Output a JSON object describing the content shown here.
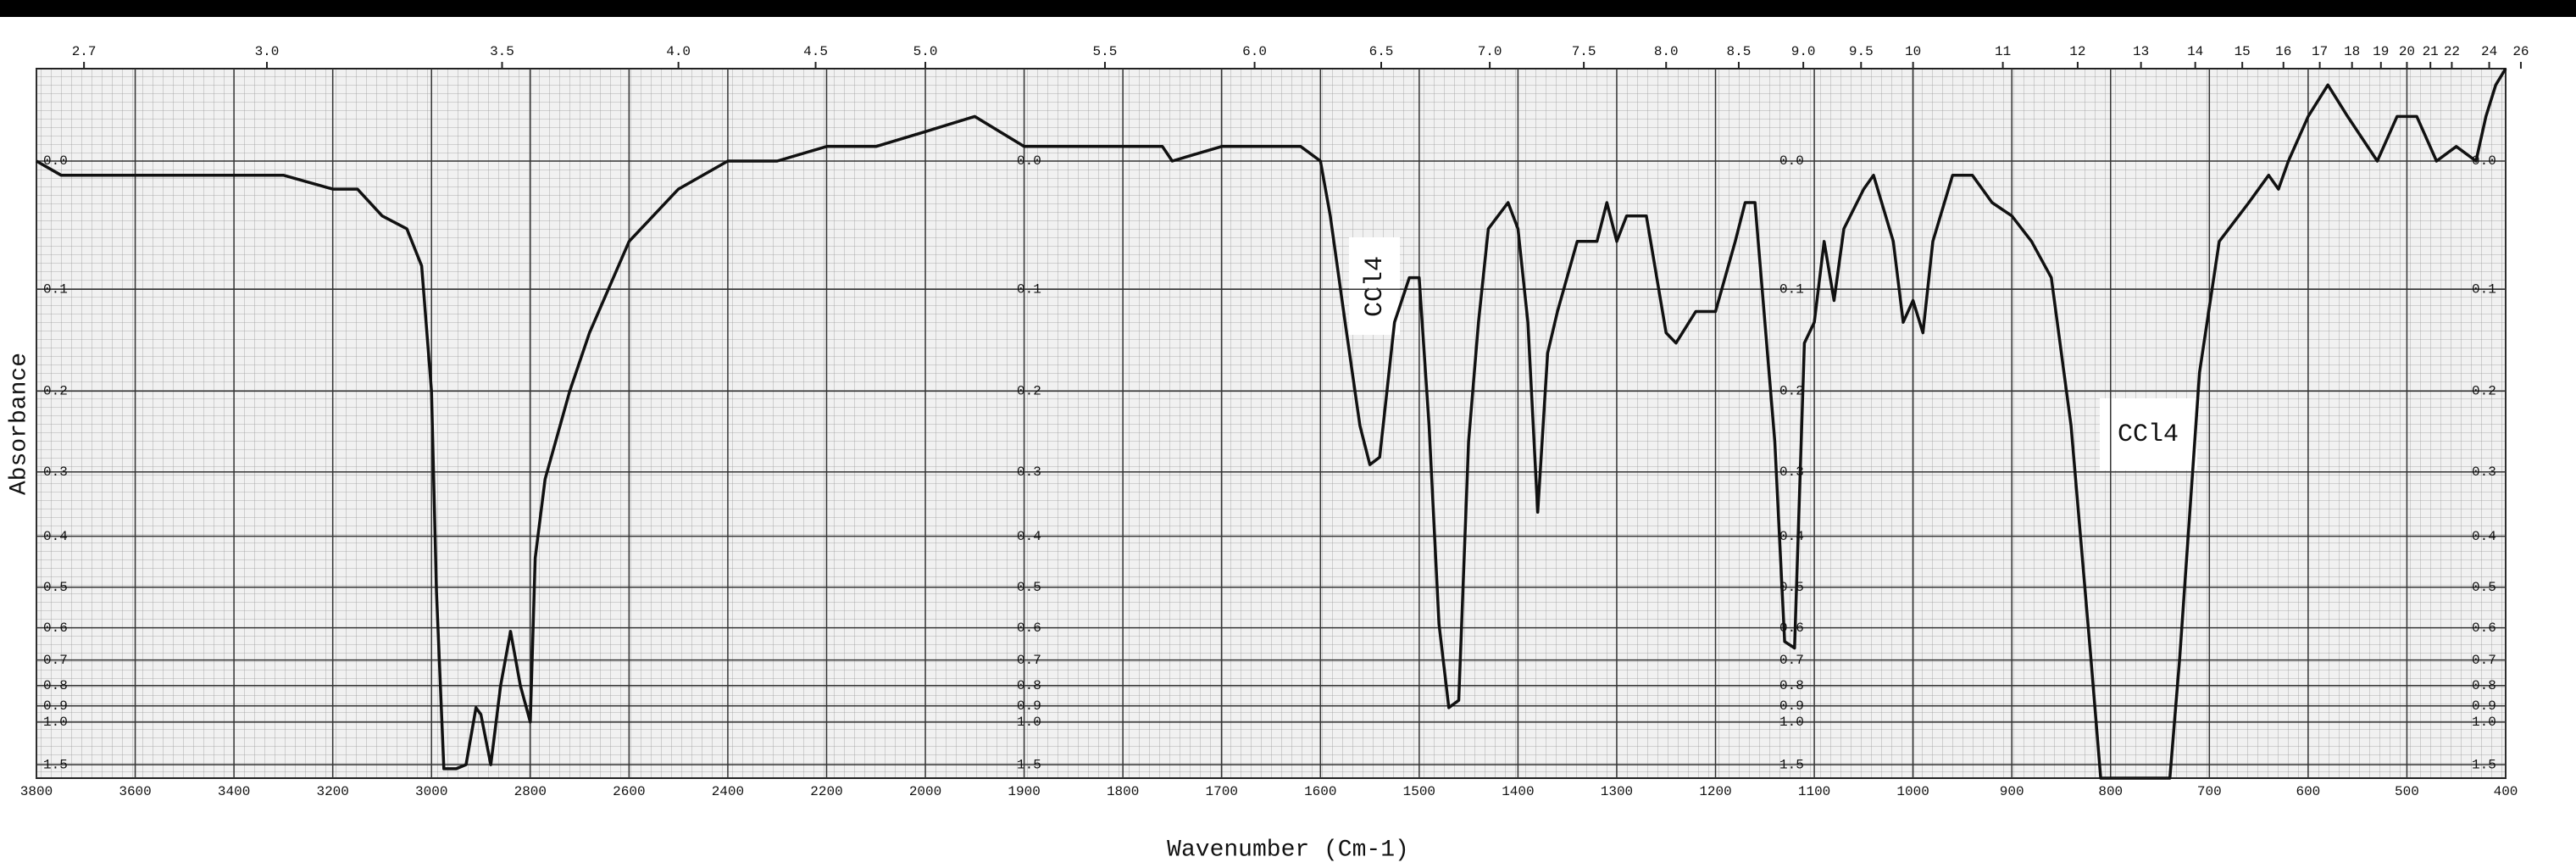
{
  "chart_data": {
    "type": "line",
    "x_label": "Wavenumber (Cm-1)",
    "y_label": "Absorbance",
    "y_scale": "transmittance",
    "grid": true,
    "color": "#111111",
    "annotations": [
      "CCl4",
      "CCl4"
    ],
    "xlim": [
      3800,
      400
    ],
    "xticks": [
      3800,
      3600,
      3400,
      3200,
      3000,
      2800,
      2600,
      2400,
      2200,
      2000,
      1900,
      1800,
      1700,
      1600,
      1500,
      1400,
      1300,
      1200,
      1100,
      1000,
      900,
      800,
      700,
      600,
      500,
      400
    ],
    "top_ticks": [
      2.7,
      {
        "value": 3,
        "label": "3.0"
      },
      3.5,
      {
        "value": 4,
        "label": "4.0"
      },
      4.5,
      {
        "value": 5,
        "label": "5.0"
      },
      5.5,
      {
        "value": 6,
        "label": "6.0"
      },
      6.5,
      {
        "value": 7,
        "label": "7.0"
      },
      7.5,
      {
        "value": 8,
        "label": "8.0"
      },
      8.5,
      {
        "value": 9,
        "label": "9.0"
      },
      9.5,
      10,
      11,
      12,
      13,
      14,
      15,
      16,
      17,
      18,
      19,
      20,
      21,
      22,
      24,
      26
    ],
    "ylim": [
      -0.06,
      2.0
    ],
    "yticks": [
      {
        "value": 0,
        "label": "0.0"
      },
      0.1,
      0.2,
      0.3,
      0.4,
      0.5,
      0.6,
      0.7,
      0.8,
      0.9,
      {
        "value": 1,
        "label": "1.0"
      },
      1.5
    ],
    "x": [
      3800,
      3750,
      3700,
      3600,
      3400,
      3300,
      3200,
      3150,
      3100,
      3050,
      3020,
      3000,
      2990,
      2975,
      2950,
      2930,
      2910,
      2900,
      2880,
      2860,
      2840,
      2820,
      2800,
      2790,
      2770,
      2720,
      2680,
      2600,
      2500,
      2400,
      2300,
      2200,
      2100,
      2000,
      1950,
      1900,
      1800,
      1760,
      1750,
      1700,
      1650,
      1620,
      1600,
      1590,
      1575,
      1560,
      1550,
      1540,
      1525,
      1510,
      1500,
      1490,
      1480,
      1470,
      1460,
      1450,
      1440,
      1430,
      1410,
      1400,
      1390,
      1380,
      1370,
      1360,
      1340,
      1320,
      1310,
      1300,
      1290,
      1270,
      1250,
      1240,
      1220,
      1200,
      1180,
      1170,
      1160,
      1150,
      1140,
      1130,
      1120,
      1110,
      1100,
      1090,
      1080,
      1070,
      1050,
      1040,
      1020,
      1010,
      1000,
      990,
      980,
      960,
      940,
      920,
      900,
      880,
      860,
      840,
      820,
      810,
      740,
      730,
      710,
      690,
      660,
      640,
      630,
      620,
      600,
      580,
      560,
      530,
      510,
      490,
      470,
      450,
      430,
      420,
      410,
      400
    ],
    "values": [
      0,
      0.01,
      0.01,
      0.01,
      0.01,
      0.01,
      0.02,
      0.02,
      0.04,
      0.05,
      0.08,
      0.2,
      0.51,
      1.6,
      1.6,
      1.5,
      0.91,
      0.95,
      1.5,
      0.8,
      0.61,
      0.8,
      1.0,
      0.44,
      0.31,
      0.2,
      0.14,
      0.06,
      0.02,
      0,
      0,
      -0.01,
      -0.01,
      -0.02,
      -0.03,
      -0.01,
      -0.01,
      -0.01,
      0,
      -0.01,
      -0.01,
      -0.01,
      0,
      0.04,
      0.13,
      0.24,
      0.29,
      0.28,
      0.13,
      0.09,
      0.09,
      0.24,
      0.59,
      0.91,
      0.87,
      0.26,
      0.13,
      0.05,
      0.03,
      0.05,
      0.13,
      0.36,
      0.16,
      0.12,
      0.06,
      0.06,
      0.03,
      0.06,
      0.04,
      0.04,
      0.14,
      0.15,
      0.12,
      0.12,
      0.06,
      0.03,
      0.03,
      0.13,
      0.26,
      0.64,
      0.66,
      0.15,
      0.13,
      0.06,
      0.11,
      0.05,
      0.02,
      0.01,
      0.06,
      0.13,
      0.11,
      0.14,
      0.06,
      0.01,
      0.01,
      0.03,
      0.04,
      0.06,
      0.09,
      0.24,
      0.69,
      2.0,
      2.0,
      0.69,
      0.18,
      0.06,
      0.03,
      0.01,
      0.02,
      0,
      -0.03,
      -0.05,
      -0.03,
      0,
      -0.03,
      -0.03,
      0,
      -0.01,
      0,
      -0.03,
      -0.05,
      -0.06
    ]
  }
}
